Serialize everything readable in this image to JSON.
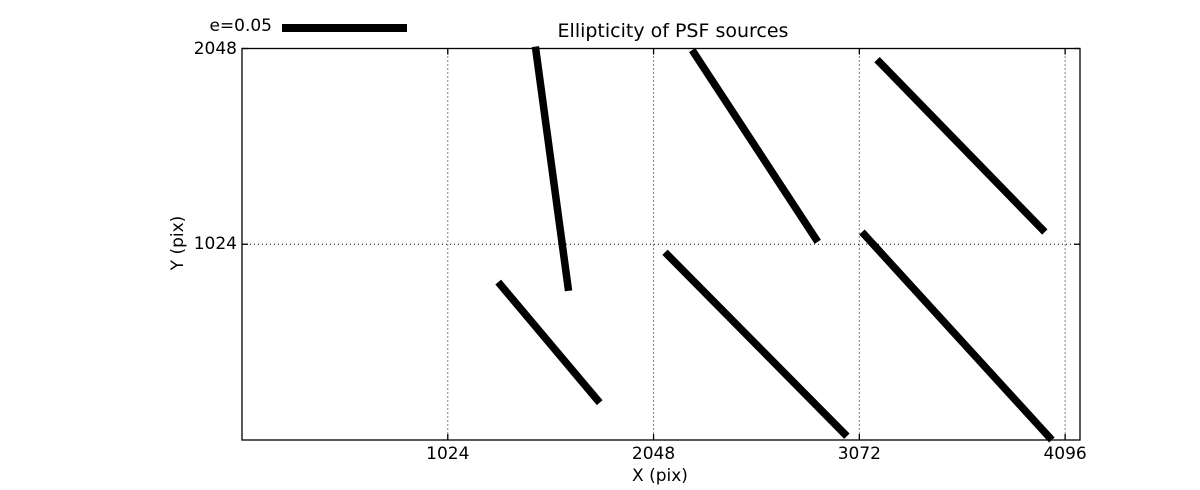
{
  "chart_data": {
    "type": "line",
    "subtype": "psf-ellipticity-whiskers",
    "title": "Ellipticity of PSF sources",
    "xlabel": "X (pix)",
    "ylabel": "Y (pix)",
    "xlim": [
      0,
      4170
    ],
    "ylim": [
      0,
      2048
    ],
    "xticks": [
      1024,
      2048,
      3072,
      4096
    ],
    "yticks": [
      1024,
      2048
    ],
    "grid": true,
    "grid_style": "dotted",
    "legend": {
      "label": "e=0.05",
      "position": "top-left-outside"
    },
    "colors": {
      "stroke": "#000000",
      "background": "#ffffff"
    },
    "segments": [
      {
        "x1": 1460,
        "y1": 2058,
        "x2": 1625,
        "y2": 780
      },
      {
        "x1": 1275,
        "y1": 826,
        "x2": 1780,
        "y2": 195
      },
      {
        "x1": 2240,
        "y1": 2040,
        "x2": 2865,
        "y2": 1037
      },
      {
        "x1": 2105,
        "y1": 982,
        "x2": 3010,
        "y2": 20
      },
      {
        "x1": 3160,
        "y1": 1990,
        "x2": 3995,
        "y2": 1088
      },
      {
        "x1": 3085,
        "y1": 1088,
        "x2": 4030,
        "y2": 0
      }
    ]
  }
}
